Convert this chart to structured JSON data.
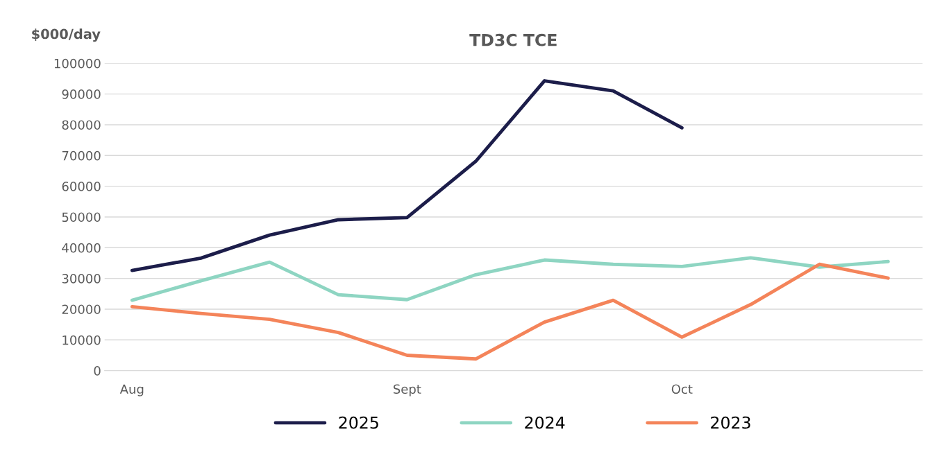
{
  "chart_data": {
    "type": "line",
    "title": "TD3C TCE",
    "ylabel": "$000/day",
    "categories": [
      "Aug",
      null,
      null,
      null,
      "Sept",
      null,
      null,
      null,
      "Oct",
      null,
      null,
      null
    ],
    "series": [
      {
        "name": "2025",
        "color": "#1c1d4a",
        "values": [
          32600,
          36600,
          44100,
          49100,
          49800,
          68100,
          94300,
          91000,
          79000,
          null,
          null,
          null
        ]
      },
      {
        "name": "2024",
        "color": "#8ed5c2",
        "values": [
          22900,
          29200,
          35300,
          24700,
          23100,
          31200,
          36000,
          34600,
          33900,
          36700,
          33700,
          35500
        ]
      },
      {
        "name": "2023",
        "color": "#f4845a",
        "values": [
          20800,
          18600,
          16700,
          12400,
          5000,
          3800,
          15800,
          22900,
          10900,
          21500,
          34600,
          30100
        ]
      }
    ],
    "ylim": [
      0,
      100000
    ],
    "yticks": [
      0,
      10000,
      20000,
      30000,
      40000,
      50000,
      60000,
      70000,
      80000,
      90000,
      100000
    ],
    "grid": "y",
    "legend": "bottom",
    "marker": "none",
    "line_style": "solid"
  }
}
